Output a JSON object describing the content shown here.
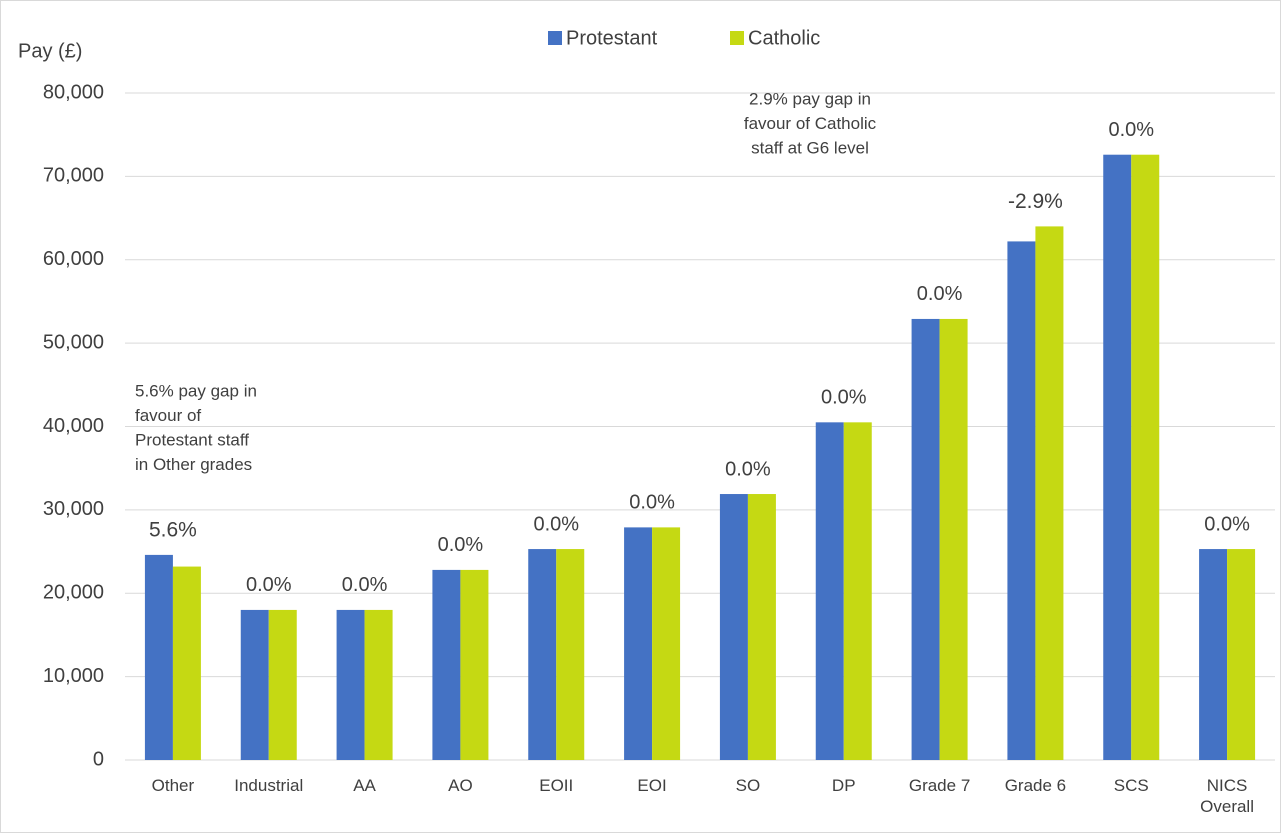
{
  "chart_data": {
    "type": "bar",
    "y_axis_label": "Pay (£)",
    "categories": [
      "Other",
      "Industrial",
      "AA",
      "AO",
      "EOII",
      "EOI",
      "SO",
      "DP",
      "Grade 7",
      "Grade 6",
      "SCS",
      "NICS Overall"
    ],
    "series": [
      {
        "name": "Protestant",
        "color": "#4472c4",
        "values": [
          24600,
          18000,
          18000,
          22800,
          25300,
          27900,
          31900,
          40500,
          52900,
          62200,
          72600,
          25300
        ]
      },
      {
        "name": "Catholic",
        "color": "#c5d913",
        "values": [
          23200,
          18000,
          18000,
          22800,
          25300,
          27900,
          31900,
          40500,
          52900,
          64000,
          72600,
          25300
        ]
      }
    ],
    "gap_labels": [
      "5.6%",
      "0.0%",
      "0.0%",
      "0.0%",
      "0.0%",
      "0.0%",
      "0.0%",
      "0.0%",
      "0.0%",
      "-2.9%",
      "0.0%",
      "0.0%"
    ],
    "annotations": [
      [
        "5.6% pay gap in",
        "favour of",
        "Protestant staff",
        "in Other grades"
      ],
      [
        "2.9% pay gap in",
        "favour of Catholic",
        "staff at G6 level"
      ]
    ],
    "ylim": [
      0,
      80000
    ],
    "yticks": [
      0,
      {
        "value": 10000,
        "label": "10,000"
      },
      {
        "value": 20000,
        "label": "20,000"
      },
      {
        "value": 30000,
        "label": "30,000"
      },
      {
        "value": 40000,
        "label": "40,000"
      },
      {
        "value": 50000,
        "label": "50,000"
      },
      {
        "value": 60000,
        "label": "60,000"
      },
      {
        "value": 70000,
        "label": "70,000"
      },
      {
        "value": 80000,
        "label": "80,000"
      }
    ],
    "grid": true,
    "legend": "top"
  }
}
